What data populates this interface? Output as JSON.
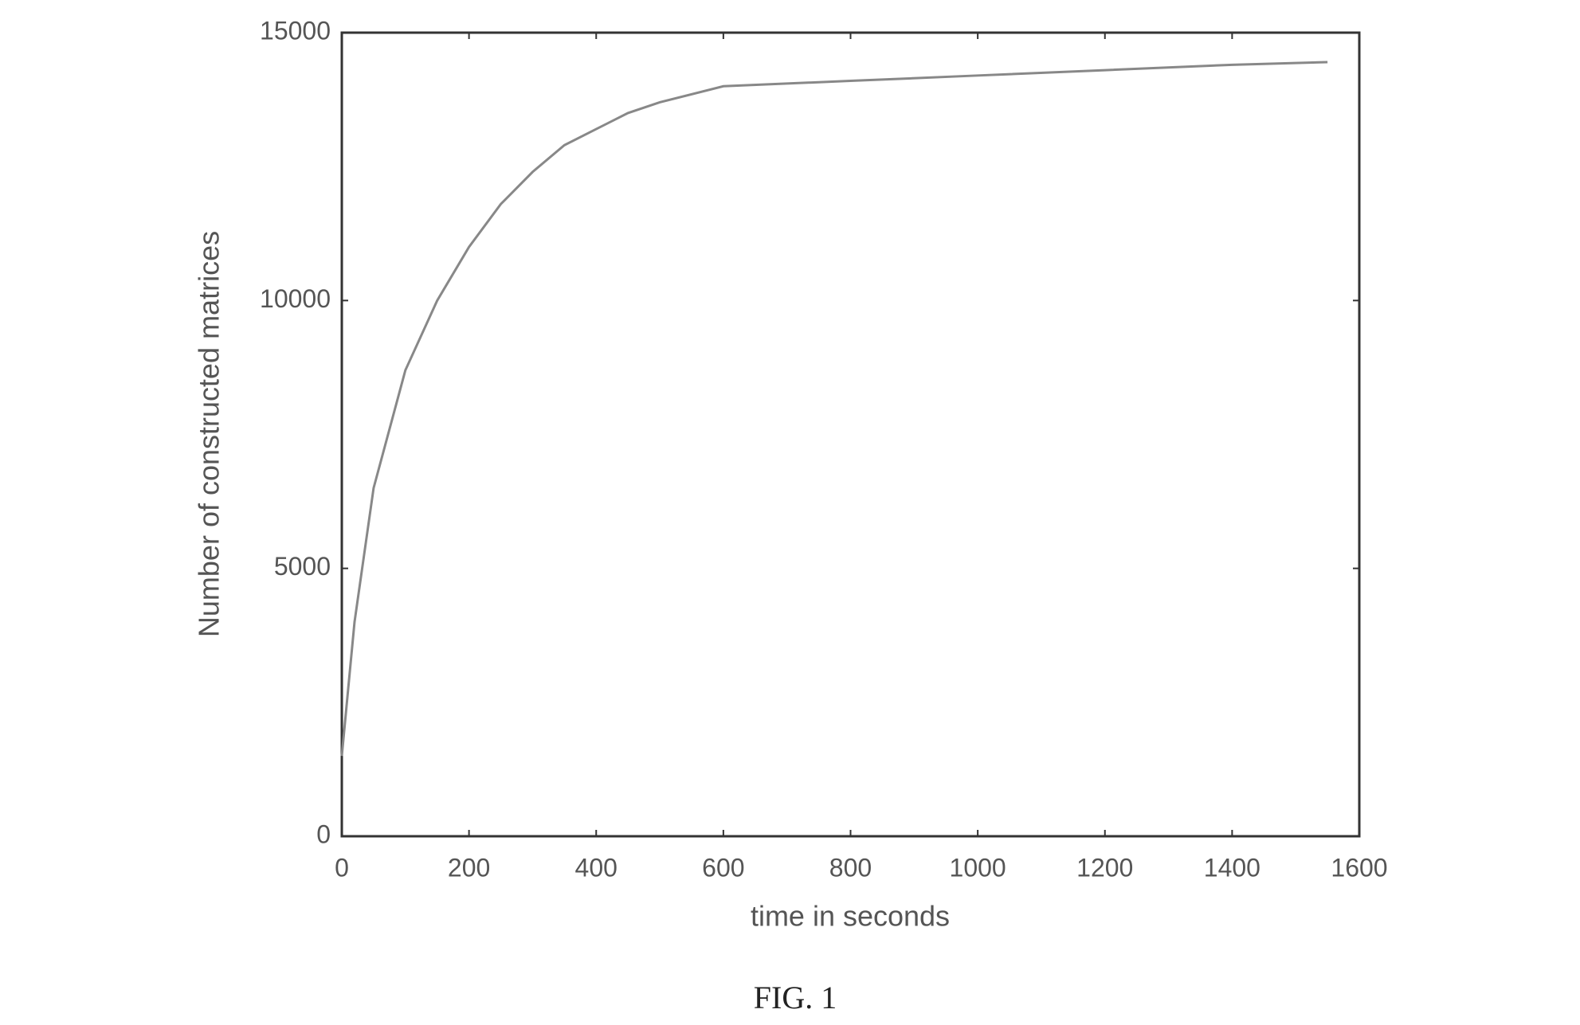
{
  "chart_data": {
    "type": "line",
    "x_label": "time in seconds",
    "y_label": "Number of constructed matrices",
    "caption": "FIG. 1",
    "x": [
      0,
      20,
      50,
      100,
      150,
      200,
      250,
      300,
      350,
      400,
      450,
      500,
      600,
      800,
      1000,
      1200,
      1400,
      1550
    ],
    "series": [
      {
        "color": "#888888",
        "values": [
          1500,
          4000,
          6500,
          8700,
          10000,
          11000,
          11800,
          12400,
          12900,
          13200,
          13500,
          13700,
          14000,
          14100,
          14200,
          14300,
          14400,
          14450
        ]
      }
    ],
    "xlim": [
      0,
      1600
    ],
    "xticks": [
      0,
      200,
      400,
      600,
      800,
      1000,
      1200,
      1400,
      1600
    ],
    "ylim": [
      0,
      15000
    ],
    "yticks": [
      0,
      5000,
      10000,
      15000
    ],
    "grid": false
  }
}
